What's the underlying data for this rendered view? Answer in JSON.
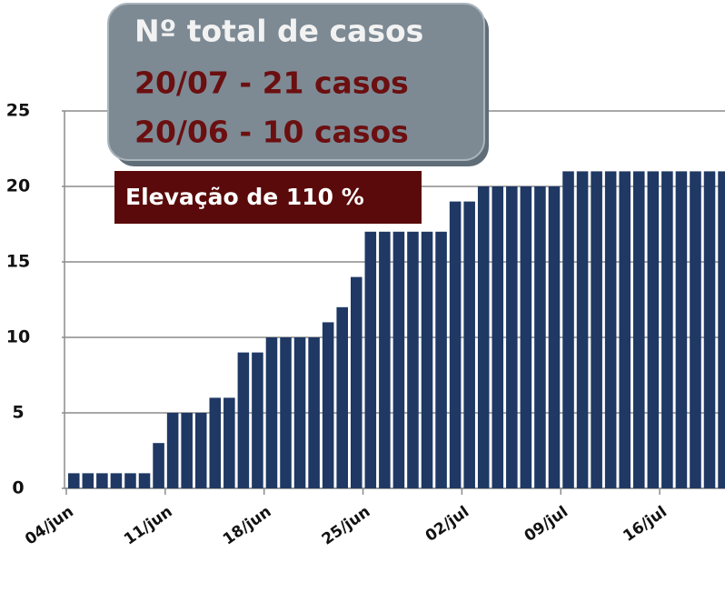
{
  "chart_data": {
    "type": "bar",
    "categories": [
      "04/jun",
      null,
      null,
      null,
      null,
      null,
      null,
      "11/jun",
      null,
      null,
      null,
      null,
      null,
      null,
      "18/jun",
      null,
      null,
      null,
      null,
      null,
      null,
      "25/jun",
      null,
      null,
      null,
      null,
      null,
      null,
      "02/jul",
      null,
      null,
      null,
      null,
      null,
      null,
      "09/jul",
      null,
      null,
      null,
      null,
      null,
      null,
      "16/jul",
      null,
      null,
      null,
      null
    ],
    "values": [
      1,
      1,
      1,
      1,
      1,
      1,
      3,
      5,
      5,
      5,
      6,
      6,
      9,
      9,
      10,
      10,
      10,
      10,
      11,
      12,
      14,
      17,
      17,
      17,
      17,
      17,
      17,
      19,
      19,
      20,
      20,
      20,
      20,
      20,
      20,
      21,
      21,
      21,
      21,
      21,
      21,
      21,
      21,
      21,
      21,
      21,
      21
    ],
    "color": "#1f3864",
    "ylim": [
      0,
      25
    ],
    "yticks": [
      0,
      5,
      10,
      15,
      20,
      25
    ],
    "grid": true,
    "annotation_box": [
      "Nº total de casos",
      "20/07 - 21 casos",
      "20/06 - 10 casos"
    ],
    "annotation_badge": "Elevação de 110 %"
  }
}
